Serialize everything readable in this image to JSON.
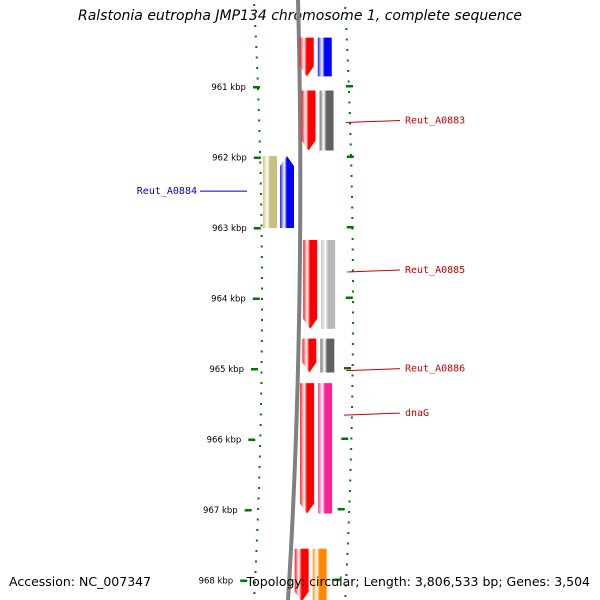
{
  "title": "Ralstonia eutropha JMP134 chromosome 1, complete sequence",
  "footer": {
    "accession": "Accession: NC_007347",
    "summary": "Topology: circular; Length: 3,806,533 bp; Genes: 3,504"
  },
  "scale": {
    "unit": "kbp",
    "ticks": [
      "961 kbp",
      "962 kbp",
      "963 kbp",
      "964 kbp",
      "965 kbp",
      "966 kbp",
      "967 kbp",
      "968 kbp"
    ]
  },
  "genes": [
    {
      "id": "g_top",
      "label": "",
      "strand": "+",
      "start_kbp": 960.3,
      "end_kbp": 960.85,
      "colors": [
        "#ff0000",
        "#0000ff"
      ]
    },
    {
      "id": "Reut_A0883",
      "label": "Reut_A0883",
      "strand": "+",
      "start_kbp": 961.05,
      "end_kbp": 961.9,
      "colors": [
        "#ff0000",
        "#606060"
      ],
      "label_color": "#cc0000"
    },
    {
      "id": "Reut_A0884",
      "label": "Reut_A0884",
      "strand": "-",
      "start_kbp": 961.98,
      "end_kbp": 963.0,
      "colors": [
        "#c8c080",
        "#0000ff"
      ],
      "label_color": "#0000cc"
    },
    {
      "id": "Reut_A0885",
      "label": "Reut_A0885",
      "strand": "+",
      "start_kbp": 963.17,
      "end_kbp": 964.43,
      "colors": [
        "#ff0000",
        "#b8b8b8"
      ],
      "label_color": "#cc0000"
    },
    {
      "id": "Reut_A0886",
      "label": "Reut_A0886",
      "strand": "+",
      "start_kbp": 964.57,
      "end_kbp": 965.05,
      "colors": [
        "#ff0000",
        "#606060"
      ],
      "label_color": "#cc0000"
    },
    {
      "id": "dnaG",
      "label": "dnaG",
      "strand": "+",
      "start_kbp": 965.2,
      "end_kbp": 967.05,
      "colors": [
        "#ff0000",
        "#ff2090"
      ],
      "label_color": "#cc0000"
    },
    {
      "id": "g_bottom",
      "label": "",
      "strand": "+",
      "start_kbp": 967.55,
      "end_kbp": 968.3,
      "colors": [
        "#ff0000",
        "#ff8800"
      ]
    }
  ],
  "colors": {
    "scale_dots": "#007700",
    "backbone": "#808080",
    "label_default": "#cc0000"
  }
}
